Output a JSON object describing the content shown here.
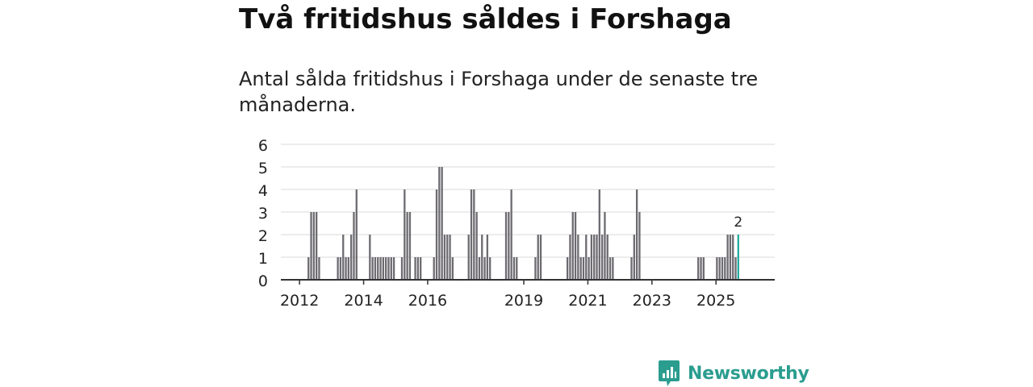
{
  "title": "Två fritidshus såldes i Forshaga",
  "subtitle": "Antal sålda fritidshus i Forshaga under de senaste tre månaderna.",
  "brand": {
    "name": "Newsworthy",
    "color": "#2a9d8f"
  },
  "chart_data": {
    "type": "bar",
    "title": "",
    "xlabel": "",
    "ylabel": "",
    "ylim": [
      0,
      6
    ],
    "y_ticks": [
      "0",
      "1",
      "2",
      "3",
      "4",
      "5",
      "6"
    ],
    "x_range": [
      "2011-06",
      "2026-11"
    ],
    "x_ticks": [
      {
        "date": "2012-01",
        "label": "2012"
      },
      {
        "date": "2014-01",
        "label": "2014"
      },
      {
        "date": "2016-01",
        "label": "2016"
      },
      {
        "date": "2019-01",
        "label": "2019"
      },
      {
        "date": "2021-01",
        "label": "2021"
      },
      {
        "date": "2023-01",
        "label": "2023"
      },
      {
        "date": "2025-01",
        "label": "2025"
      }
    ],
    "grid": true,
    "bar_color": "#6d6b70",
    "highlight_color": "#1aa79a",
    "highlight_label": "2",
    "categories": [
      "2012-04",
      "2012-05",
      "2012-06",
      "2012-07",
      "2012-08",
      "2013-03",
      "2013-04",
      "2013-05",
      "2013-06",
      "2013-07",
      "2013-08",
      "2013-09",
      "2013-10",
      "2014-03",
      "2014-04",
      "2014-05",
      "2014-06",
      "2014-07",
      "2014-08",
      "2014-09",
      "2014-10",
      "2014-11",
      "2014-12",
      "2015-03",
      "2015-04",
      "2015-05",
      "2015-06",
      "2015-08",
      "2015-09",
      "2015-10",
      "2016-03",
      "2016-04",
      "2016-05",
      "2016-06",
      "2016-07",
      "2016-08",
      "2016-09",
      "2016-10",
      "2017-04",
      "2017-05",
      "2017-06",
      "2017-07",
      "2017-08",
      "2017-09",
      "2017-10",
      "2017-11",
      "2017-12",
      "2018-06",
      "2018-07",
      "2018-08",
      "2018-09",
      "2018-10",
      "2019-05",
      "2019-06",
      "2019-07",
      "2020-05",
      "2020-06",
      "2020-07",
      "2020-08",
      "2020-09",
      "2020-10",
      "2020-11",
      "2020-12",
      "2021-01",
      "2021-02",
      "2021-03",
      "2021-04",
      "2021-05",
      "2021-06",
      "2021-07",
      "2021-08",
      "2021-09",
      "2021-10",
      "2022-05",
      "2022-06",
      "2022-07",
      "2022-08",
      "2024-06",
      "2024-07",
      "2024-08",
      "2025-01",
      "2025-02",
      "2025-03",
      "2025-04",
      "2025-05",
      "2025-06",
      "2025-07",
      "2025-08",
      "2025-09"
    ],
    "series": [
      {
        "values": [
          1,
          3,
          3,
          3,
          1,
          1,
          1,
          2,
          1,
          1,
          2,
          3,
          4,
          2,
          1,
          1,
          1,
          1,
          1,
          1,
          1,
          1,
          1,
          1,
          4,
          3,
          3,
          1,
          1,
          1,
          1,
          4,
          5,
          5,
          2,
          2,
          2,
          1,
          2,
          4,
          4,
          3,
          1,
          2,
          1,
          2,
          1,
          3,
          3,
          4,
          1,
          1,
          1,
          2,
          2,
          1,
          2,
          3,
          3,
          2,
          1,
          1,
          2,
          1,
          2,
          2,
          2,
          4,
          2,
          3,
          2,
          1,
          1,
          1,
          2,
          4,
          3,
          1,
          1,
          1,
          1,
          1,
          1,
          1,
          2,
          2,
          2,
          1,
          2
        ]
      }
    ]
  }
}
